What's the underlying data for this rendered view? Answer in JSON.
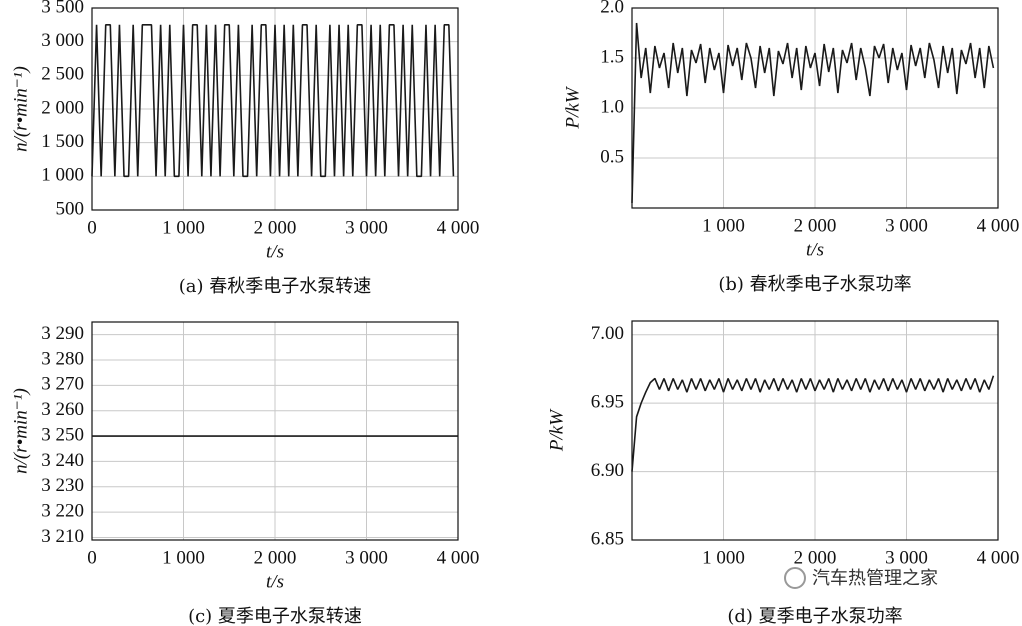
{
  "chart_data": [
    {
      "type": "line",
      "title": "(a) 春秋季电子水泵转速",
      "xlabel": "t/s",
      "ylabel": "n/(r•min⁻¹)",
      "x": [
        0,
        50,
        100,
        150,
        200,
        250,
        300,
        350,
        400,
        450,
        500,
        550,
        600,
        650,
        700,
        750,
        800,
        850,
        900,
        950,
        1000,
        1050,
        1100,
        1150,
        1200,
        1250,
        1300,
        1350,
        1400,
        1450,
        1500,
        1550,
        1600,
        1650,
        1700,
        1750,
        1800,
        1850,
        1900,
        1950,
        2000,
        2050,
        2100,
        2150,
        2200,
        2250,
        2300,
        2350,
        2400,
        2450,
        2500,
        2550,
        2600,
        2650,
        2700,
        2750,
        2800,
        2850,
        2900,
        2950,
        3000,
        3050,
        3100,
        3150,
        3200,
        3250,
        3300,
        3350,
        3400,
        3450,
        3500,
        3550,
        3600,
        3650,
        3700,
        3750,
        3800,
        3850,
        3900,
        3950
      ],
      "series": [
        {
          "color": "#1a1a1a",
          "values": [
            1000,
            3250,
            1000,
            3250,
            3250,
            1000,
            3250,
            1000,
            1000,
            3250,
            1000,
            3250,
            3250,
            3250,
            1000,
            3250,
            1000,
            3250,
            1000,
            1000,
            3250,
            1000,
            3250,
            3250,
            1000,
            3250,
            1000,
            3250,
            1000,
            3250,
            3250,
            1000,
            3250,
            1000,
            1000,
            3250,
            1000,
            3250,
            3250,
            1000,
            3250,
            1000,
            3250,
            1000,
            3250,
            1000,
            3250,
            3250,
            1000,
            3250,
            1000,
            1000,
            3250,
            1000,
            3250,
            1000,
            3250,
            1000,
            3250,
            3250,
            1000,
            3250,
            1000,
            3250,
            1000,
            3250,
            3250,
            1000,
            3250,
            1000,
            3250,
            1000,
            1000,
            3250,
            1000,
            3250,
            1000,
            3250,
            3250,
            1000
          ]
        }
      ],
      "xlim": [
        0,
        4000
      ],
      "ylim": [
        500,
        3500
      ],
      "xticks": [
        0,
        {
          "value": 1000,
          "label": "1 000"
        },
        {
          "value": 2000,
          "label": "2 000"
        },
        {
          "value": 3000,
          "label": "3 000"
        },
        {
          "value": 4000,
          "label": "4 000"
        }
      ],
      "yticks": [
        500,
        {
          "value": 1000,
          "label": "1 000"
        },
        {
          "value": 1500,
          "label": "1 500"
        },
        {
          "value": 2000,
          "label": "2 000"
        },
        {
          "value": 2500,
          "label": "2 500"
        },
        {
          "value": 3000,
          "label": "3 000"
        },
        {
          "value": 3500,
          "label": "3 500"
        }
      ],
      "grid": true
    },
    {
      "type": "line",
      "title": "(b) 春秋季电子水泵功率",
      "xlabel": "t/s",
      "ylabel": "P/kW",
      "x": [
        0,
        50,
        100,
        150,
        200,
        250,
        300,
        350,
        400,
        450,
        500,
        550,
        600,
        650,
        700,
        750,
        800,
        850,
        900,
        950,
        1000,
        1050,
        1100,
        1150,
        1200,
        1250,
        1300,
        1350,
        1400,
        1450,
        1500,
        1550,
        1600,
        1650,
        1700,
        1750,
        1800,
        1850,
        1900,
        1950,
        2000,
        2050,
        2100,
        2150,
        2200,
        2250,
        2300,
        2350,
        2400,
        2450,
        2500,
        2550,
        2600,
        2650,
        2700,
        2750,
        2800,
        2850,
        2900,
        2950,
        3000,
        3050,
        3100,
        3150,
        3200,
        3250,
        3300,
        3350,
        3400,
        3450,
        3500,
        3550,
        3600,
        3650,
        3700,
        3750,
        3800,
        3850,
        3900,
        3950
      ],
      "series": [
        {
          "color": "#1a1a1a",
          "values": [
            0.05,
            1.85,
            1.3,
            1.6,
            1.15,
            1.62,
            1.4,
            1.55,
            1.2,
            1.65,
            1.35,
            1.6,
            1.12,
            1.58,
            1.45,
            1.64,
            1.25,
            1.6,
            1.38,
            1.55,
            1.15,
            1.63,
            1.42,
            1.6,
            1.28,
            1.65,
            1.5,
            1.2,
            1.62,
            1.35,
            1.6,
            1.12,
            1.57,
            1.44,
            1.65,
            1.3,
            1.6,
            1.18,
            1.62,
            1.4,
            1.55,
            1.22,
            1.64,
            1.36,
            1.6,
            1.15,
            1.58,
            1.45,
            1.65,
            1.28,
            1.6,
            1.4,
            1.12,
            1.62,
            1.5,
            1.64,
            1.25,
            1.6,
            1.38,
            1.55,
            1.18,
            1.63,
            1.42,
            1.6,
            1.3,
            1.65,
            1.48,
            1.2,
            1.62,
            1.35,
            1.6,
            1.14,
            1.58,
            1.44,
            1.65,
            1.3,
            1.6,
            1.2,
            1.62,
            1.4
          ]
        }
      ],
      "xlim": [
        0,
        4000
      ],
      "ylim": [
        0,
        2
      ],
      "xticks": [
        {
          "value": 1000,
          "label": "1 000"
        },
        {
          "value": 2000,
          "label": "2 000"
        },
        {
          "value": 3000,
          "label": "3 000"
        },
        {
          "value": 4000,
          "label": "4 000"
        }
      ],
      "yticks": [
        0.5,
        {
          "value": 1,
          "label": "1.0"
        },
        1.5,
        {
          "value": 2,
          "label": "2.0"
        }
      ],
      "grid": true
    },
    {
      "type": "line",
      "title": "(c) 夏季电子水泵转速",
      "xlabel": "t/s",
      "ylabel": "n/(r•min⁻¹)",
      "x": [
        0,
        4000
      ],
      "series": [
        {
          "color": "#1a1a1a",
          "values": [
            3250,
            3250
          ]
        }
      ],
      "xlim": [
        0,
        4000
      ],
      "ylim": [
        3209,
        3295
      ],
      "xticks": [
        0,
        {
          "value": 1000,
          "label": "1 000"
        },
        {
          "value": 2000,
          "label": "2 000"
        },
        {
          "value": 3000,
          "label": "3 000"
        },
        {
          "value": 4000,
          "label": "4 000"
        }
      ],
      "yticks": [
        {
          "value": 3210,
          "label": "3 210"
        },
        {
          "value": 3220,
          "label": "3 220"
        },
        {
          "value": 3230,
          "label": "3 230"
        },
        {
          "value": 3240,
          "label": "3 240"
        },
        {
          "value": 3250,
          "label": "3 250"
        },
        {
          "value": 3260,
          "label": "3 260"
        },
        {
          "value": 3270,
          "label": "3 270"
        },
        {
          "value": 3280,
          "label": "3 280"
        },
        {
          "value": 3290,
          "label": "3 290"
        }
      ],
      "grid": true
    },
    {
      "type": "line",
      "title": "(d) 夏季电子水泵功率",
      "ylabel": "P/kW",
      "x": [
        0,
        50,
        100,
        150,
        200,
        250,
        300,
        350,
        400,
        450,
        500,
        550,
        600,
        650,
        700,
        750,
        800,
        850,
        900,
        950,
        1000,
        1050,
        1100,
        1150,
        1200,
        1250,
        1300,
        1350,
        1400,
        1450,
        1500,
        1550,
        1600,
        1650,
        1700,
        1750,
        1800,
        1850,
        1900,
        1950,
        2000,
        2050,
        2100,
        2150,
        2200,
        2250,
        2300,
        2350,
        2400,
        2450,
        2500,
        2550,
        2600,
        2650,
        2700,
        2750,
        2800,
        2850,
        2900,
        2950,
        3000,
        3050,
        3100,
        3150,
        3200,
        3250,
        3300,
        3350,
        3400,
        3450,
        3500,
        3550,
        3600,
        3650,
        3700,
        3750,
        3800,
        3850,
        3900,
        3950
      ],
      "series": [
        {
          "color": "#1a1a1a",
          "values": [
            6.9,
            6.94,
            6.95,
            6.958,
            6.965,
            6.968,
            6.96,
            6.968,
            6.959,
            6.968,
            6.96,
            6.967,
            6.958,
            6.968,
            6.96,
            6.968,
            6.959,
            6.967,
            6.96,
            6.968,
            6.958,
            6.968,
            6.96,
            6.967,
            6.959,
            6.968,
            6.96,
            6.968,
            6.958,
            6.967,
            6.96,
            6.968,
            6.959,
            6.968,
            6.96,
            6.967,
            6.958,
            6.968,
            6.96,
            6.968,
            6.959,
            6.967,
            6.96,
            6.968,
            6.958,
            6.968,
            6.96,
            6.967,
            6.959,
            6.968,
            6.96,
            6.968,
            6.958,
            6.967,
            6.96,
            6.968,
            6.959,
            6.968,
            6.96,
            6.967,
            6.958,
            6.968,
            6.96,
            6.968,
            6.959,
            6.967,
            6.96,
            6.968,
            6.958,
            6.968,
            6.96,
            6.967,
            6.959,
            6.968,
            6.96,
            6.968,
            6.958,
            6.967,
            6.96,
            6.97
          ]
        }
      ],
      "xlim": [
        0,
        4000
      ],
      "ylim": [
        6.85,
        7.01
      ],
      "xticks": [
        {
          "value": 1000,
          "label": "1 000"
        },
        {
          "value": 2000,
          "label": "2 000"
        },
        {
          "value": 3000,
          "label": "3 000"
        },
        {
          "value": 4000,
          "label": "4 000"
        }
      ],
      "yticks": [
        6.85,
        {
          "value": 6.9,
          "label": "6.90"
        },
        6.95,
        {
          "value": 7,
          "label": "7.00"
        }
      ],
      "grid": true
    }
  ],
  "watermark": "汽车热管理之家"
}
